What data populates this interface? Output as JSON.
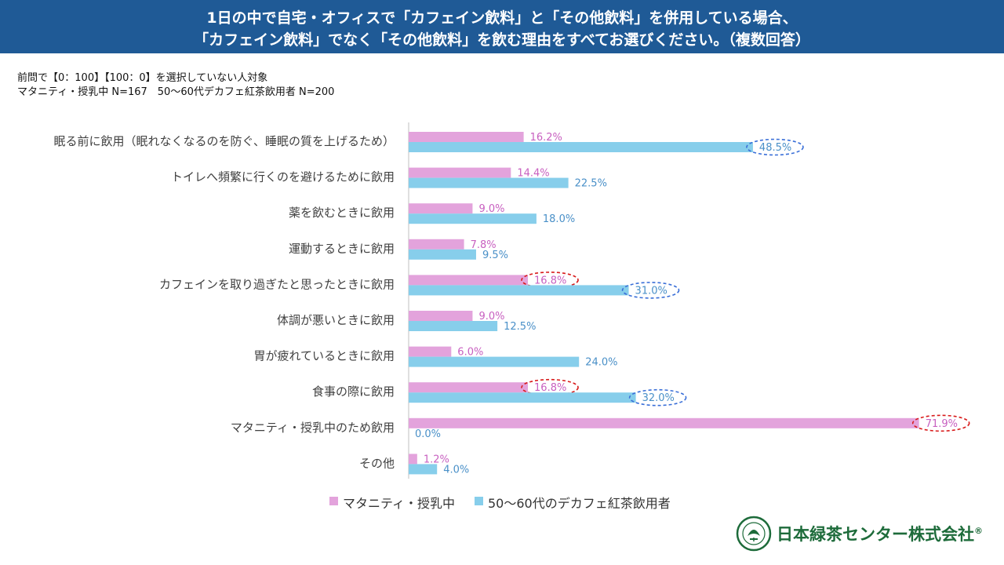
{
  "header": {
    "line1": "1日の中で自宅・オフィスで「カフェイン飲料」と「その他飲料」を併用している場合、",
    "line2": "「カフェイン飲料」でなく「その他飲料」を飲む理由をすべてお選びください。（複数回答）"
  },
  "notes": {
    "line1": "前問で【0：100】【100：0】を選択していない人対象",
    "line2": "マタニティ・授乳中 N=167　50～60代デカフェ紅茶飲用者 N=200"
  },
  "colors": {
    "header_bg": "#1f5a96",
    "series1": "#e3a3dc",
    "series1_label": "#c860c0",
    "series2": "#87ceeb",
    "series2_label": "#4a90c8",
    "highlight_red": "#d81b1b",
    "highlight_blue": "#3a6fd8"
  },
  "chart_data": {
    "type": "bar",
    "orientation": "horizontal",
    "categories": [
      "眠る前に飲用（眠れなくなるのを防ぐ、睡眠の質を上げるため）",
      "トイレへ頻繁に行くのを避けるために飲用",
      "薬を飲むときに飲用",
      "運動するときに飲用",
      "カフェインを取り過ぎたと思ったときに飲用",
      "体調が悪いときに飲用",
      "胃が疲れているときに飲用",
      "食事の際に飲用",
      "マタニティ・授乳中のため飲用",
      "その他"
    ],
    "series": [
      {
        "name": "マタニティ・授乳中",
        "values": [
          16.2,
          14.4,
          9.0,
          7.8,
          16.8,
          9.0,
          6.0,
          16.8,
          71.9,
          1.2
        ],
        "labels": [
          "16.2%",
          "14.4%",
          "9.0%",
          "7.8%",
          "16.8%",
          "9.0%",
          "6.0%",
          "16.8%",
          "71.9%",
          "1.2%"
        ],
        "highlighted": [
          4,
          7,
          8
        ]
      },
      {
        "name": "50～60代のデカフェ紅茶飲用者",
        "values": [
          48.5,
          22.5,
          18.0,
          9.5,
          31.0,
          12.5,
          24.0,
          32.0,
          0.0,
          4.0
        ],
        "labels": [
          "48.5%",
          "22.5%",
          "18.0%",
          "9.5%",
          "31.0%",
          "12.5%",
          "24.0%",
          "32.0%",
          "0.0%",
          "4.0%"
        ],
        "highlighted": [
          0,
          4,
          7
        ]
      }
    ],
    "xlim": [
      0,
      100
    ],
    "legend": "bottom"
  },
  "logo": {
    "name": "日本緑茶センター株式会社",
    "reg": "®",
    "emblem_text": "THE FINEST TEA"
  }
}
